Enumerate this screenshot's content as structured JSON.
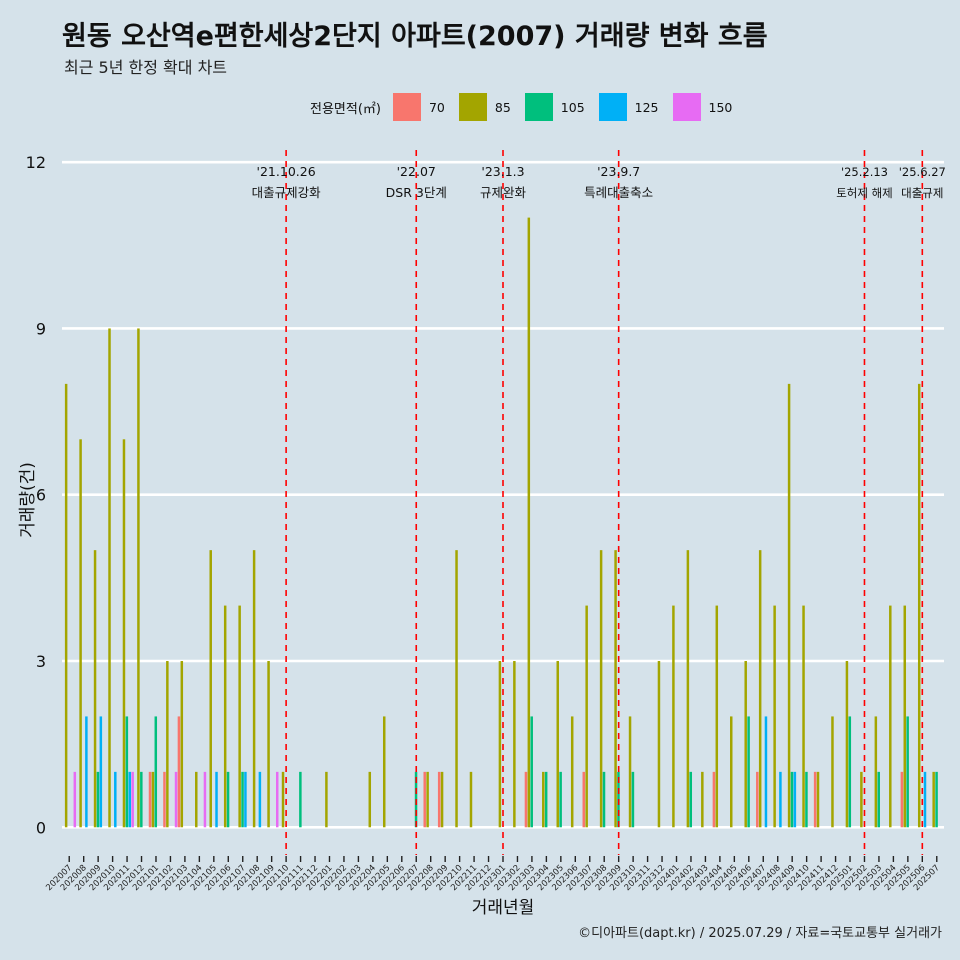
{
  "chart_data": {
    "type": "bar",
    "title": "원동 오산역e편한세상2단지 아파트(2007) 거래량 변화 흐름",
    "subtitle": "최근 5년 한정 확대 차트",
    "xlabel": "거래년월",
    "ylabel": "거래량(건)",
    "ylim": [
      -0.5,
      12.4
    ],
    "yticks": [
      0,
      3,
      6,
      9,
      12
    ],
    "legend": {
      "title": "전용면적(㎡)",
      "position": "top",
      "entries": [
        {
          "name": "70",
          "color": "#f8766d"
        },
        {
          "name": "85",
          "color": "#a3a500"
        },
        {
          "name": "105",
          "color": "#00bf7d"
        },
        {
          "name": "125",
          "color": "#00b0f6"
        },
        {
          "name": "150",
          "color": "#e76bf3"
        }
      ]
    },
    "categories": [
      "202007",
      "202008",
      "202009",
      "202010",
      "202011",
      "202012",
      "202101",
      "202102",
      "202103",
      "202104",
      "202105",
      "202106",
      "202107",
      "202108",
      "202109",
      "202110",
      "202111",
      "202112",
      "202201",
      "202202",
      "202203",
      "202204",
      "202205",
      "202206",
      "202207",
      "202208",
      "202209",
      "202210",
      "202211",
      "202212",
      "202301",
      "202302",
      "202303",
      "202304",
      "202305",
      "202306",
      "202307",
      "202308",
      "202309",
      "202310",
      "202311",
      "202312",
      "202401",
      "202402",
      "202403",
      "202404",
      "202405",
      "202406",
      "202407",
      "202408",
      "202409",
      "202410",
      "202411",
      "202412",
      "202501",
      "202502",
      "202503",
      "202504",
      "202505",
      "202506",
      "202507"
    ],
    "series": [
      {
        "name": "70",
        "values": [
          0,
          0,
          0,
          0,
          0,
          0,
          1,
          1,
          2,
          0,
          0,
          0,
          0,
          0,
          0,
          0,
          0,
          0,
          0,
          0,
          0,
          0,
          0,
          0,
          0,
          1,
          1,
          0,
          0,
          0,
          0,
          0,
          1,
          0,
          0,
          0,
          1,
          0,
          0,
          0,
          0,
          0,
          0,
          0,
          0,
          1,
          0,
          0,
          1,
          0,
          0,
          0,
          1,
          0,
          0,
          0,
          0,
          0,
          1,
          0,
          0
        ]
      },
      {
        "name": "85",
        "values": [
          8,
          7,
          5,
          9,
          7,
          9,
          1,
          3,
          3,
          1,
          5,
          4,
          4,
          5,
          3,
          1,
          0,
          0,
          1,
          0,
          0,
          1,
          2,
          0,
          0,
          1,
          1,
          5,
          1,
          0,
          3,
          3,
          11,
          1,
          3,
          2,
          4,
          5,
          5,
          2,
          0,
          3,
          4,
          5,
          1,
          4,
          2,
          3,
          5,
          4,
          8,
          4,
          1,
          2,
          3,
          1,
          2,
          4,
          4,
          8,
          1
        ]
      },
      {
        "name": "105",
        "values": [
          0,
          0,
          1,
          0,
          2,
          1,
          2,
          0,
          0,
          0,
          0,
          1,
          1,
          0,
          0,
          0,
          1,
          0,
          0,
          0,
          0,
          0,
          0,
          0,
          1,
          0,
          0,
          0,
          0,
          0,
          0,
          0,
          2,
          1,
          1,
          0,
          0,
          1,
          1,
          1,
          0,
          0,
          0,
          1,
          0,
          0,
          0,
          2,
          0,
          0,
          1,
          1,
          0,
          0,
          2,
          0,
          1,
          0,
          2,
          0,
          1
        ]
      },
      {
        "name": "125",
        "values": [
          0,
          2,
          2,
          1,
          1,
          0,
          0,
          0,
          0,
          0,
          1,
          0,
          1,
          1,
          0,
          0,
          0,
          0,
          0,
          0,
          0,
          0,
          0,
          0,
          0,
          0,
          0,
          0,
          0,
          0,
          0,
          0,
          0,
          0,
          0,
          0,
          0,
          0,
          0,
          0,
          0,
          0,
          0,
          0,
          0,
          0,
          0,
          0,
          2,
          1,
          1,
          0,
          0,
          0,
          0,
          0,
          0,
          0,
          0,
          1,
          0
        ]
      },
      {
        "name": "150",
        "values": [
          1,
          0,
          0,
          0,
          1,
          0,
          0,
          1,
          0,
          1,
          0,
          0,
          0,
          0,
          1,
          0,
          0,
          0,
          0,
          0,
          0,
          0,
          0,
          0,
          0,
          0,
          0,
          0,
          0,
          0,
          0,
          0,
          0,
          0,
          0,
          0,
          0,
          0,
          0,
          0,
          0,
          0,
          0,
          0,
          0,
          0,
          0,
          0,
          0,
          0,
          0,
          0,
          0,
          0,
          0,
          0,
          0,
          0,
          0,
          0,
          0
        ]
      }
    ],
    "events": [
      {
        "category": "202110",
        "date": "'21.10.26",
        "label": "대출규제강화"
      },
      {
        "category": "202207",
        "date": "'22.07",
        "label": "DSR 3단계"
      },
      {
        "category": "202301",
        "date": "'23.1.3",
        "label": "규제완화"
      },
      {
        "category": "202309",
        "date": "'23.9.7",
        "label": "특례대출축소"
      },
      {
        "category": "202502",
        "date": "'25.2.13",
        "label": "토허제 해제"
      },
      {
        "category": "202506",
        "date": "'25.6.27",
        "label": "대출규제"
      }
    ],
    "caption": "©디아파트(dapt.kr) / 2025.07.29 / 자료=국토교통부 실거래가"
  }
}
